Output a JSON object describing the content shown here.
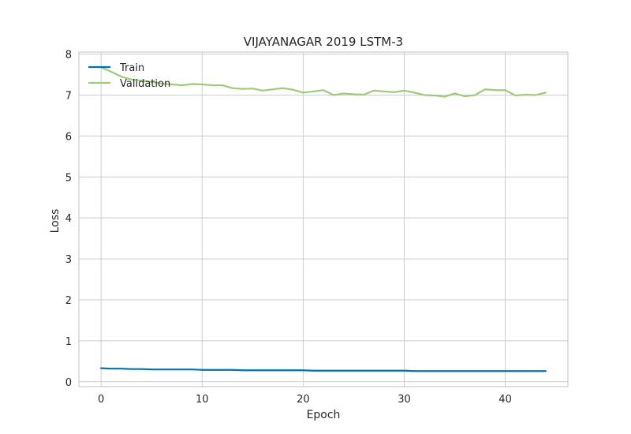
{
  "chart_data": {
    "type": "line",
    "title": "VIJAYANAGAR 2019 LSTM-3",
    "xlabel": "Epoch",
    "ylabel": "Loss",
    "xlim": [
      -2.2,
      46.2
    ],
    "ylim": [
      -0.12,
      8.05
    ],
    "xticks": [
      0,
      10,
      20,
      30,
      40
    ],
    "yticks": [
      0,
      1,
      2,
      3,
      4,
      5,
      6,
      7,
      8
    ],
    "grid": true,
    "legend": "upper-left",
    "x": [
      0,
      1,
      2,
      3,
      4,
      5,
      6,
      7,
      8,
      9,
      10,
      11,
      12,
      13,
      14,
      15,
      16,
      17,
      18,
      19,
      20,
      21,
      22,
      23,
      24,
      25,
      26,
      27,
      28,
      29,
      30,
      31,
      32,
      33,
      34,
      35,
      36,
      37,
      38,
      39,
      40,
      41,
      42,
      43,
      44
    ],
    "series": [
      {
        "name": "Train",
        "color": "#0072b2",
        "values": [
          0.33,
          0.32,
          0.32,
          0.31,
          0.31,
          0.3,
          0.3,
          0.3,
          0.3,
          0.3,
          0.29,
          0.29,
          0.29,
          0.29,
          0.28,
          0.28,
          0.28,
          0.28,
          0.28,
          0.28,
          0.28,
          0.27,
          0.27,
          0.27,
          0.27,
          0.27,
          0.27,
          0.27,
          0.27,
          0.27,
          0.27,
          0.26,
          0.26,
          0.26,
          0.26,
          0.26,
          0.26,
          0.26,
          0.26,
          0.26,
          0.26,
          0.26,
          0.26,
          0.26,
          0.26
        ]
      },
      {
        "name": "Validation",
        "color": "#9ecb7a",
        "values": [
          7.68,
          7.57,
          7.45,
          7.38,
          7.35,
          7.32,
          7.28,
          7.26,
          7.24,
          7.27,
          7.26,
          7.24,
          7.24,
          7.17,
          7.15,
          7.16,
          7.11,
          7.14,
          7.17,
          7.13,
          7.06,
          7.09,
          7.12,
          7.0,
          7.04,
          7.02,
          7.01,
          7.11,
          7.09,
          7.07,
          7.11,
          7.06,
          7.0,
          6.99,
          6.96,
          7.04,
          6.97,
          7.0,
          7.14,
          7.12,
          7.12,
          6.99,
          7.01,
          7.0,
          7.06
        ]
      }
    ]
  }
}
